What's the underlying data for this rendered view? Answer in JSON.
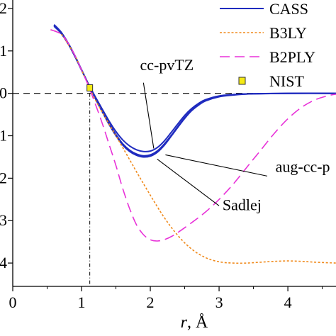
{
  "chart_data": {
    "type": "line",
    "title": "",
    "xlabel": "r, Å",
    "ylabel": "",
    "xlim": [
      0,
      4.7
    ],
    "ylim": [
      -4.55,
      2.2
    ],
    "x_ticks": [
      0,
      1,
      2,
      3,
      4
    ],
    "y_ticks": [
      {
        "value": 2,
        "label": "2"
      },
      {
        "value": 1,
        "label": "1"
      },
      {
        "value": 0,
        "label": "0"
      },
      {
        "value": -1,
        "label": "1"
      },
      {
        "value": -2,
        "label": "2"
      },
      {
        "value": -3,
        "label": "3"
      },
      {
        "value": -4,
        "label": "4"
      }
    ],
    "reference_lines": {
      "horizontal_dashed_y": 0,
      "vertical_dashdot_x": 1.12
    },
    "legend": {
      "placement": "top-right",
      "entries": [
        "CASS",
        "B3LY",
        "B2PLY",
        "NIST"
      ]
    },
    "series": [
      {
        "name": "CASS",
        "style": "solid",
        "color": "#1f2bbf",
        "basis": "cc-pvTZ",
        "x": [
          0.6,
          0.7,
          0.8,
          0.9,
          1.0,
          1.1,
          1.2,
          1.3,
          1.4,
          1.5,
          1.6,
          1.7,
          1.8,
          1.9,
          2.0,
          2.1,
          2.2,
          2.3,
          2.4,
          2.5,
          2.6,
          2.7,
          2.8,
          3.0,
          3.2,
          3.5,
          4.0,
          4.7
        ],
        "y": [
          1.58,
          1.42,
          1.18,
          0.88,
          0.55,
          0.22,
          -0.08,
          -0.37,
          -0.65,
          -0.9,
          -1.1,
          -1.24,
          -1.33,
          -1.37,
          -1.36,
          -1.28,
          -1.13,
          -0.93,
          -0.72,
          -0.52,
          -0.36,
          -0.24,
          -0.15,
          -0.06,
          -0.03,
          -0.01,
          0.0,
          0.0
        ]
      },
      {
        "name": "CASS",
        "style": "solid",
        "color": "#1f2bbf",
        "basis": "aug-cc-p",
        "x": [
          0.6,
          0.7,
          0.8,
          0.9,
          1.0,
          1.1,
          1.2,
          1.3,
          1.4,
          1.5,
          1.6,
          1.7,
          1.8,
          1.9,
          2.0,
          2.1,
          2.2,
          2.3,
          2.4,
          2.5,
          2.6,
          2.7,
          2.8,
          3.0,
          3.2,
          3.5,
          4.0,
          4.7
        ],
        "y": [
          1.62,
          1.45,
          1.2,
          0.9,
          0.56,
          0.22,
          -0.1,
          -0.4,
          -0.7,
          -0.97,
          -1.19,
          -1.34,
          -1.43,
          -1.47,
          -1.45,
          -1.36,
          -1.2,
          -1.0,
          -0.78,
          -0.57,
          -0.4,
          -0.27,
          -0.17,
          -0.07,
          -0.03,
          -0.01,
          0.0,
          0.0
        ]
      },
      {
        "name": "CASS",
        "style": "solid",
        "color": "#1f2bbf",
        "basis": "Sadlej",
        "x": [
          0.6,
          0.7,
          0.8,
          0.9,
          1.0,
          1.1,
          1.2,
          1.3,
          1.4,
          1.5,
          1.6,
          1.7,
          1.8,
          1.9,
          2.0,
          2.1,
          2.2,
          2.3,
          2.4,
          2.5,
          2.6,
          2.7,
          2.8,
          3.0,
          3.2,
          3.5,
          4.0,
          4.7
        ],
        "y": [
          1.6,
          1.44,
          1.19,
          0.89,
          0.55,
          0.21,
          -0.12,
          -0.43,
          -0.73,
          -1.0,
          -1.22,
          -1.37,
          -1.46,
          -1.5,
          -1.48,
          -1.39,
          -1.23,
          -1.02,
          -0.8,
          -0.59,
          -0.41,
          -0.28,
          -0.18,
          -0.08,
          -0.04,
          -0.01,
          0.0,
          0.0
        ]
      },
      {
        "name": "B3LY",
        "style": "dotted",
        "color": "#f08a1c",
        "x": [
          0.55,
          0.7,
          0.8,
          0.9,
          1.0,
          1.1,
          1.2,
          1.4,
          1.6,
          1.8,
          2.0,
          2.2,
          2.4,
          2.6,
          2.8,
          3.0,
          3.2,
          3.4,
          3.6,
          3.8,
          4.0,
          4.2,
          4.4,
          4.7
        ],
        "y": [
          1.5,
          1.4,
          1.17,
          0.9,
          0.55,
          0.2,
          -0.15,
          -0.72,
          -1.28,
          -1.85,
          -2.4,
          -2.92,
          -3.35,
          -3.67,
          -3.87,
          -3.97,
          -4.0,
          -4.0,
          -3.98,
          -3.96,
          -3.95,
          -3.96,
          -3.98,
          -4.0
        ]
      },
      {
        "name": "B2PLY",
        "style": "dashed",
        "color": "#e832d8",
        "x": [
          0.55,
          0.7,
          0.8,
          0.9,
          1.0,
          1.1,
          1.2,
          1.3,
          1.4,
          1.5,
          1.6,
          1.7,
          1.8,
          1.9,
          2.0,
          2.1,
          2.2,
          2.3,
          2.4,
          2.6,
          2.8,
          3.0,
          3.2,
          3.4,
          3.6,
          3.8,
          4.0,
          4.2,
          4.4,
          4.6,
          4.7
        ],
        "y": [
          1.5,
          1.4,
          1.2,
          0.9,
          0.55,
          0.18,
          -0.25,
          -0.7,
          -1.2,
          -1.7,
          -2.25,
          -2.72,
          -3.1,
          -3.33,
          -3.45,
          -3.48,
          -3.45,
          -3.38,
          -3.28,
          -3.05,
          -2.8,
          -2.5,
          -2.15,
          -1.75,
          -1.35,
          -0.95,
          -0.6,
          -0.33,
          -0.15,
          -0.05,
          -0.02
        ]
      },
      {
        "name": "NIST",
        "style": "marker",
        "color": "#f5ea14",
        "x": [
          1.12
        ],
        "y": [
          0.12
        ]
      }
    ],
    "annotations": [
      {
        "text": "cc-pvTZ",
        "x": 1.85,
        "y": 0.55
      },
      {
        "text": "aug-cc-p",
        "x": 3.82,
        "y": -1.85
      },
      {
        "text": "Sadlej",
        "x": 3.05,
        "y": -2.75
      }
    ]
  }
}
